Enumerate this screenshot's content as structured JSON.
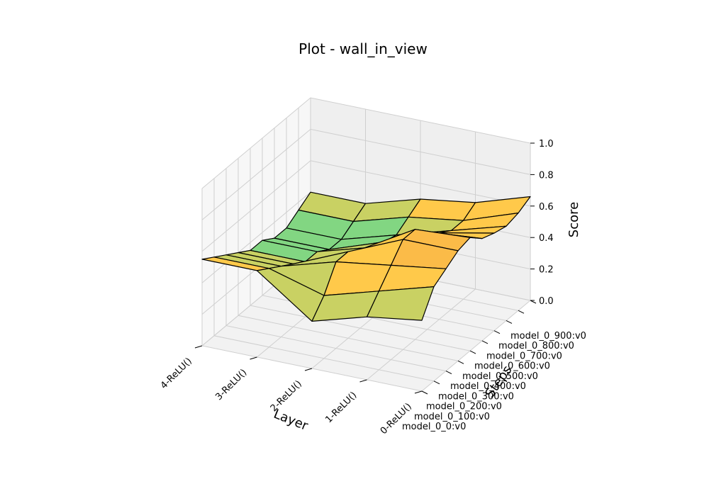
{
  "chart_data": {
    "type": "surface3d",
    "title": "Plot - wall_in_view",
    "xlabel": "Layer",
    "ylabel": "Steps",
    "zlabel": "Score",
    "x_categories": [
      "0-ReLU()",
      "1-ReLU()",
      "2-ReLU()",
      "3-ReLU()",
      "4-ReLU()"
    ],
    "y_categories": [
      "model_0_0:v0",
      "model_0_100:v0",
      "model_0_200:v0",
      "model_0_300:v0",
      "model_0_400:v0",
      "model_0_500:v0",
      "model_0_600:v0",
      "model_0_700:v0",
      "model_0_800:v0",
      "model_0_900:v0"
    ],
    "z_ticks": [
      "0.0",
      "0.2",
      "0.4",
      "0.6",
      "0.8",
      "1.0"
    ],
    "zlim": [
      0,
      1
    ],
    "z_values": [
      [
        0.45,
        0.6,
        0.65,
        0.7,
        0.72,
        0.65,
        0.62,
        0.6,
        0.62,
        0.66
      ],
      [
        0.4,
        0.5,
        0.6,
        0.7,
        0.7,
        0.62,
        0.55,
        0.5,
        0.5,
        0.55
      ],
      [
        0.3,
        0.4,
        0.55,
        0.55,
        0.5,
        0.45,
        0.42,
        0.4,
        0.45,
        0.5
      ],
      [
        0.55,
        0.5,
        0.45,
        0.4,
        0.35,
        0.35,
        0.3,
        0.3,
        0.35,
        0.4
      ],
      [
        0.55,
        0.5,
        0.45,
        0.4,
        0.35,
        0.35,
        0.3,
        0.3,
        0.35,
        0.4
      ]
    ],
    "grid": true,
    "colormap": [
      "#b3ddf2",
      "#b3e0d3",
      "#82d682",
      "#c9d163",
      "#ffc94a",
      "#fbbb48",
      "#f5a452",
      "#f08a4b"
    ]
  }
}
